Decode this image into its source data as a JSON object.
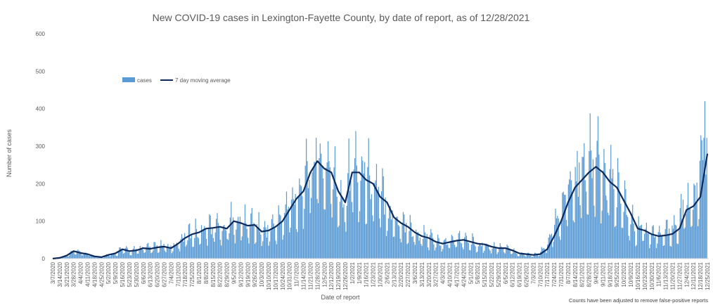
{
  "chart_data": {
    "type": "bar",
    "title": "New COVID-19 cases in Lexington-Fayette County, by date of report, as of 12/28/2021",
    "xlabel": "Date of report",
    "ylabel": "Number of cases",
    "note": "Counts have been adjusted to remove false-positive reports",
    "ylim": [
      0,
      600
    ],
    "yticks": [
      "0",
      "100",
      "200",
      "300",
      "400",
      "500",
      "600"
    ],
    "grid": false,
    "legend_position": "top-left",
    "colors": {
      "bars": "#5b9bd5",
      "line": "#0d2a5c",
      "text": "#595959"
    },
    "x_start": "3/7/2020",
    "x_end": "12/28/2021",
    "xticks": [
      "3/7/2020",
      "3/14/2020",
      "3/21/2020",
      "3/28/2020",
      "4/4/2020",
      "4/11/2020",
      "4/18/2020",
      "4/25/2020",
      "5/2/2020",
      "5/9/2020",
      "5/16/2020",
      "5/23/2020",
      "5/30/2020",
      "6/6/2020",
      "6/13/2020",
      "6/20/2020",
      "6/27/2020",
      "7/4/2020",
      "7/11/2020",
      "7/18/2020",
      "7/25/2020",
      "8/1/2020",
      "8/8/2020",
      "8/15/2020",
      "8/22/2020",
      "8/29/2020",
      "9/5/2020",
      "9/12/2020",
      "9/19/2020",
      "9/26/2020",
      "10/3/2020",
      "10/10/2020",
      "10/17/2020",
      "10/24/2020",
      "10/31/2020",
      "11/7/2020",
      "11/14/2020",
      "11/21/2020",
      "11/28/2020",
      "12/5/2020",
      "12/12/2020",
      "12/19/2020",
      "12/26/2020",
      "1/2/2021",
      "1/9/2021",
      "1/16/2021",
      "1/23/2021",
      "1/30/2021",
      "2/6/2021",
      "2/13/2021",
      "2/20/2021",
      "2/27/2021",
      "3/6/2021",
      "3/13/2021",
      "3/20/2021",
      "3/27/2021",
      "4/3/2021",
      "4/10/2021",
      "4/17/2021",
      "4/24/2021",
      "5/1/2021",
      "5/8/2021",
      "5/15/2021",
      "5/22/2021",
      "5/29/2021",
      "6/5/2021",
      "6/12/2021",
      "6/19/2021",
      "6/26/2021",
      "7/3/2021",
      "7/10/2021",
      "7/17/2021",
      "7/24/2021",
      "7/31/2021",
      "8/7/2021",
      "8/14/2021",
      "8/21/2021",
      "8/28/2021",
      "9/4/2021",
      "9/11/2021",
      "9/18/2021",
      "9/25/2021",
      "10/2/2021",
      "10/9/2021",
      "10/16/2021",
      "10/23/2021",
      "10/30/2021",
      "11/6/2021",
      "11/13/2021",
      "11/20/2021",
      "11/27/2021",
      "12/4/2021",
      "12/11/2021",
      "12/18/2021",
      "12/25/2021"
    ],
    "series": [
      {
        "name": "cases",
        "kind": "bar",
        "weekly_avg_values": [
          0,
          2,
          8,
          20,
          15,
          12,
          6,
          4,
          10,
          14,
          25,
          20,
          22,
          28,
          26,
          30,
          32,
          28,
          40,
          55,
          65,
          70,
          80,
          82,
          85,
          80,
          100,
          95,
          88,
          90,
          72,
          75,
          85,
          100,
          130,
          160,
          180,
          230,
          260,
          240,
          230,
          180,
          150,
          230,
          230,
          210,
          200,
          165,
          150,
          110,
          95,
          85,
          70,
          60,
          55,
          45,
          40,
          44,
          48,
          50,
          45,
          40,
          38,
          32,
          28,
          28,
          22,
          14,
          12,
          10,
          12,
          25,
          60,
          100,
          150,
          190,
          210,
          230,
          245,
          230,
          205,
          190,
          155,
          120,
          80,
          75,
          65,
          60,
          62,
          66,
          80,
          130,
          140,
          165,
          280
        ]
      },
      {
        "name": "7 day moving average",
        "kind": "line",
        "values": [
          0,
          2,
          8,
          20,
          15,
          12,
          6,
          4,
          10,
          14,
          25,
          20,
          22,
          28,
          26,
          30,
          32,
          28,
          40,
          55,
          65,
          70,
          80,
          82,
          85,
          80,
          100,
          95,
          88,
          90,
          72,
          75,
          85,
          100,
          130,
          160,
          180,
          230,
          260,
          240,
          230,
          180,
          150,
          230,
          230,
          210,
          200,
          165,
          150,
          110,
          95,
          85,
          70,
          60,
          55,
          45,
          40,
          44,
          48,
          50,
          45,
          40,
          38,
          32,
          28,
          28,
          22,
          14,
          12,
          10,
          12,
          25,
          60,
          100,
          150,
          190,
          210,
          230,
          245,
          230,
          205,
          190,
          155,
          120,
          80,
          75,
          65,
          60,
          62,
          66,
          80,
          130,
          140,
          165,
          280
        ]
      }
    ]
  }
}
